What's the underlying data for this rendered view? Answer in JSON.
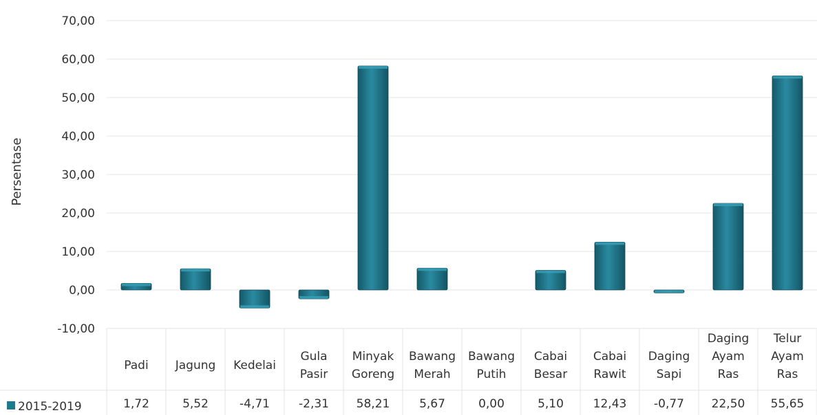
{
  "chart_data": {
    "type": "bar",
    "title": "",
    "xlabel": "",
    "ylabel": "Persentase",
    "ylim": [
      -10,
      70
    ],
    "yticks": [
      "-10,00",
      "0,00",
      "10,00",
      "20,00",
      "30,00",
      "40,00",
      "50,00",
      "60,00",
      "70,00"
    ],
    "grid": true,
    "legend_position": "bottom-left",
    "categories": [
      [
        "Padi"
      ],
      [
        "Jagung"
      ],
      [
        "Kedelai"
      ],
      [
        "Gula",
        "Pasir"
      ],
      [
        "Minyak",
        "Goreng"
      ],
      [
        "Bawang",
        "Merah"
      ],
      [
        "Bawang",
        "Putih"
      ],
      [
        "Cabai",
        "Besar"
      ],
      [
        "Cabai",
        "Rawit"
      ],
      [
        "Daging",
        "Sapi"
      ],
      [
        "Daging",
        "Ayam",
        "Ras"
      ],
      [
        "Telur",
        "Ayam",
        "Ras"
      ]
    ],
    "series": [
      {
        "name": "2015-2019",
        "color": "#1f7a8c",
        "values": [
          1.72,
          5.52,
          -4.71,
          -2.31,
          58.21,
          5.67,
          0.0,
          5.1,
          12.43,
          -0.77,
          22.5,
          55.65
        ],
        "value_labels": [
          "1,72",
          "5,52",
          "-4,71",
          "-2,31",
          "58,21",
          "5,67",
          "0,00",
          "5,10",
          "12,43",
          "-0,77",
          "22,50",
          "55,65"
        ]
      }
    ]
  }
}
